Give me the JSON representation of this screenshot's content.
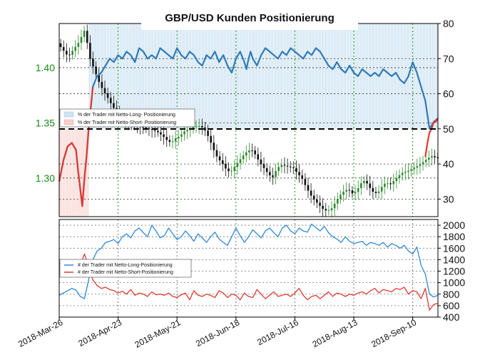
{
  "colors": {
    "long": "#2f7ab8",
    "short": "#e03a2f",
    "price": "#111111",
    "candle_up": "#2e8b2e",
    "candle_down": "#111111",
    "grid": "#1f9a1f",
    "long_zone": "#dcebf6",
    "short_zone": "#fbe3e1"
  },
  "chart_data": [
    {
      "type": "line",
      "title": "GBP/USD Kunden Positionierung",
      "x_ticks": [
        "2018-Mar-26",
        "2018-Apr-23",
        "2018-May-21",
        "2018-Jun-18",
        "2018-Jul-16",
        "2018-Aug-13",
        "2018-Sep-10"
      ],
      "left_axis": {
        "ticks": [
          "1.30",
          "1.35",
          "1.40"
        ],
        "ylim": [
          1.265,
          1.44
        ]
      },
      "right_axis": {
        "ticks": [
          "30",
          "40",
          "50",
          "60",
          "70",
          "80"
        ],
        "ylim": [
          25,
          80
        ]
      },
      "reference_line": 50,
      "legend": {
        "placement": "left",
        "entries": [
          "% der Trader  mit  Netto-Long-  Positionierung",
          "% der Trader  mit  Netto-Short-  Positionierung"
        ]
      },
      "series": [
        {
          "name": "% der Trader  mit  Netto-Long-  Positionierung",
          "axis": "right",
          "x": [
            0,
            2,
            4,
            6,
            8,
            9,
            10,
            11,
            12,
            13,
            14,
            15,
            16,
            18,
            20,
            22,
            24,
            26,
            28,
            30,
            32,
            34,
            36,
            38,
            40,
            42,
            44,
            46,
            48,
            50,
            52,
            54,
            56,
            58,
            60,
            62,
            64,
            66,
            68,
            70,
            72,
            74,
            76,
            78,
            80,
            82,
            84,
            86,
            88,
            89,
            90,
            91,
            92,
            94,
            96,
            98,
            100,
            102,
            104,
            106,
            108,
            110,
            112,
            114,
            116,
            118,
            120,
            122,
            124,
            126,
            128,
            130,
            132,
            134,
            136,
            138,
            140,
            142,
            144,
            146,
            148,
            150,
            152,
            154,
            156,
            158,
            160,
            162,
            164,
            166,
            168,
            170,
            172,
            174,
            176,
            178,
            180
          ],
          "values": [
            35,
            41,
            45,
            46,
            44,
            38,
            33,
            28,
            36,
            42,
            50,
            56,
            62,
            65,
            66,
            68,
            70,
            69,
            71,
            70,
            72,
            71,
            69,
            73,
            72,
            70,
            71,
            70,
            73,
            72,
            71,
            70,
            73,
            71,
            70,
            72,
            71,
            69,
            68,
            71,
            70,
            72,
            69,
            71,
            68,
            66,
            70,
            72,
            69,
            67,
            70,
            72,
            70,
            68,
            71,
            73,
            72,
            71,
            70,
            72,
            71,
            73,
            72,
            71,
            70,
            72,
            71,
            73,
            72,
            70,
            68,
            67,
            69,
            67,
            66,
            68,
            66,
            65,
            67,
            66,
            65,
            66,
            65,
            67,
            66,
            65,
            66,
            64,
            63,
            65,
            69,
            66,
            62,
            58,
            50,
            52,
            53
          ]
        },
        {
          "name": "% der Trader  mit  Netto-Short-  Positionierung",
          "axis": "right",
          "x": [
            0,
            2,
            4,
            6,
            8,
            9,
            10,
            11,
            12,
            13,
            14,
            15,
            16,
            174,
            175,
            176,
            177,
            178,
            179,
            180
          ],
          "values": [
            35,
            41,
            45,
            46,
            44,
            38,
            33,
            28,
            36,
            42,
            50,
            56,
            62,
            42,
            46,
            49,
            50,
            52,
            52,
            53
          ]
        },
        {
          "name": "GBP/USD",
          "axis": "left",
          "x": [
            0,
            5,
            10,
            13,
            15,
            18,
            20,
            22,
            24,
            26,
            28,
            30,
            32,
            34,
            36,
            38,
            40,
            42,
            44,
            46,
            48,
            50,
            52,
            54,
            56,
            58,
            60,
            62,
            64,
            66,
            68,
            70,
            72,
            74,
            76,
            78,
            80,
            82,
            84,
            86,
            88,
            90,
            92,
            94,
            96,
            98,
            100,
            102,
            104,
            106,
            108,
            110,
            112,
            114,
            116,
            118,
            120,
            122,
            124,
            126,
            128,
            130,
            132,
            134,
            136,
            138,
            140,
            142,
            144,
            146,
            148,
            150,
            152,
            154,
            156,
            158,
            160,
            162,
            164,
            166,
            168,
            170,
            172,
            174,
            176,
            178,
            180
          ],
          "values": [
            1.422,
            1.41,
            1.423,
            1.435,
            1.41,
            1.395,
            1.385,
            1.378,
            1.372,
            1.365,
            1.36,
            1.355,
            1.352,
            1.35,
            1.348,
            1.347,
            1.346,
            1.345,
            1.344,
            1.343,
            1.341,
            1.338,
            1.334,
            1.332,
            1.336,
            1.338,
            1.342,
            1.344,
            1.346,
            1.347,
            1.347,
            1.343,
            1.336,
            1.326,
            1.318,
            1.314,
            1.308,
            1.305,
            1.31,
            1.315,
            1.32,
            1.324,
            1.326,
            1.321,
            1.314,
            1.309,
            1.304,
            1.3,
            1.308,
            1.312,
            1.311,
            1.31,
            1.309,
            1.304,
            1.3,
            1.292,
            1.285,
            1.28,
            1.276,
            1.272,
            1.27,
            1.272,
            1.278,
            1.284,
            1.288,
            1.29,
            1.286,
            1.288,
            1.295,
            1.298,
            1.292,
            1.287,
            1.286,
            1.292,
            1.296,
            1.294,
            1.298,
            1.302,
            1.305,
            1.306,
            1.308,
            1.31,
            1.312,
            1.315,
            1.318,
            1.32,
            1.318
          ]
        }
      ]
    },
    {
      "type": "line",
      "right_axis": {
        "ticks": [
          "400",
          "600",
          "800",
          "1000",
          "1200",
          "1400",
          "1600",
          "1800",
          "2000"
        ],
        "ylim": [
          400,
          2100
        ]
      },
      "legend": {
        "placement": "left",
        "entries": [
          "# der Trader  mit  Netto-Long-Positionierung",
          "# der Trader  mit  Netto-Short-Positionierung"
        ]
      },
      "series": [
        {
          "name": "# der Trader  mit  Netto-Long-Positionierung",
          "x": [
            0,
            2,
            4,
            6,
            8,
            10,
            12,
            14,
            16,
            18,
            20,
            22,
            24,
            26,
            28,
            30,
            32,
            34,
            36,
            38,
            40,
            42,
            44,
            46,
            48,
            50,
            52,
            54,
            56,
            58,
            60,
            62,
            64,
            66,
            68,
            70,
            72,
            74,
            76,
            78,
            80,
            82,
            84,
            86,
            88,
            90,
            92,
            94,
            96,
            98,
            100,
            102,
            104,
            106,
            108,
            110,
            112,
            114,
            116,
            118,
            120,
            122,
            124,
            126,
            128,
            130,
            132,
            134,
            136,
            138,
            140,
            142,
            144,
            146,
            148,
            150,
            152,
            154,
            156,
            158,
            160,
            162,
            164,
            166,
            168,
            170,
            172,
            174,
            176,
            178,
            180
          ],
          "values": [
            780,
            820,
            860,
            900,
            870,
            760,
            720,
            1050,
            1400,
            1550,
            1600,
            1700,
            1720,
            1750,
            1680,
            1800,
            1850,
            1780,
            1900,
            1950,
            1870,
            1800,
            2000,
            1900,
            1780,
            1820,
            1950,
            1850,
            1750,
            1800,
            1900,
            1820,
            1720,
            1850,
            1780,
            1700,
            1800,
            1880,
            1760,
            1700,
            1650,
            1800,
            1950,
            1820,
            1700,
            1800,
            1920,
            1850,
            1780,
            1900,
            1950,
            1870,
            1800,
            1950,
            2000,
            1900,
            1850,
            1950,
            1900,
            1880,
            2020,
            1960,
            1900,
            1980,
            1870,
            1800,
            1760,
            1700,
            1800,
            1720,
            1680,
            1700,
            1720,
            1650,
            1700,
            1680,
            1650,
            1700,
            1620,
            1680,
            1650,
            1600,
            1650,
            1550,
            1500,
            1620,
            1300,
            1150,
            800,
            750,
            780
          ]
        },
        {
          "name": "# der Trader  mit  Netto-Short-Positionierung",
          "x": [
            0,
            2,
            4,
            6,
            8,
            10,
            12,
            14,
            16,
            18,
            20,
            22,
            24,
            26,
            28,
            30,
            32,
            34,
            36,
            38,
            40,
            42,
            44,
            46,
            48,
            50,
            52,
            54,
            56,
            58,
            60,
            62,
            64,
            66,
            68,
            70,
            72,
            74,
            76,
            78,
            80,
            82,
            84,
            86,
            88,
            90,
            92,
            94,
            96,
            98,
            100,
            102,
            104,
            106,
            108,
            110,
            112,
            114,
            116,
            118,
            120,
            122,
            124,
            126,
            128,
            130,
            132,
            134,
            136,
            138,
            140,
            142,
            144,
            146,
            148,
            150,
            152,
            154,
            156,
            158,
            160,
            162,
            164,
            166,
            168,
            170,
            172,
            174,
            176,
            178,
            180
          ],
          "values": [
            1340,
            1250,
            1150,
            1100,
            1180,
            1300,
            1500,
            1280,
            1050,
            950,
            900,
            920,
            880,
            860,
            820,
            850,
            800,
            880,
            780,
            820,
            800,
            760,
            840,
            790,
            800,
            780,
            820,
            760,
            740,
            790,
            820,
            700,
            860,
            780,
            760,
            800,
            780,
            740,
            860,
            820,
            740,
            800,
            780,
            700,
            820,
            760,
            740,
            880,
            800,
            720,
            780,
            840,
            760,
            780,
            800,
            760,
            820,
            900,
            780,
            700,
            760,
            780,
            720,
            780,
            840,
            760,
            820,
            800,
            760,
            800,
            780,
            820,
            840,
            800,
            860,
            900,
            820,
            880,
            860,
            840,
            900,
            880,
            920,
            800,
            860,
            840,
            720,
            900,
            520,
            620,
            640
          ]
        }
      ]
    }
  ]
}
